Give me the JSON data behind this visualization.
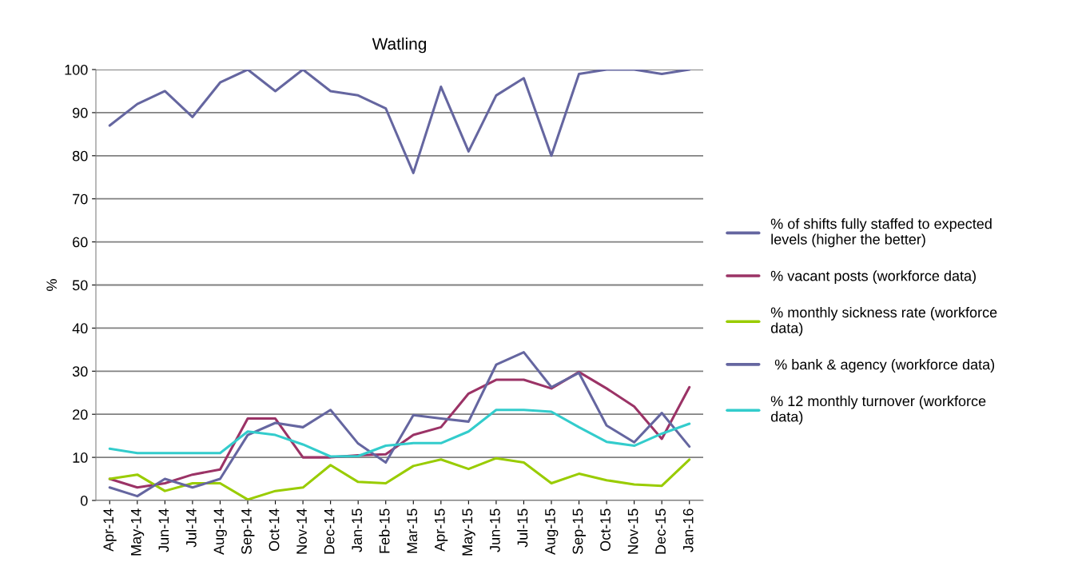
{
  "chart_data": {
    "type": "line",
    "title": "Watling",
    "ylabel": "%",
    "categories": [
      "Apr-14",
      "May-14",
      "Jun-14",
      "Jul-14",
      "Aug-14",
      "Sep-14",
      "Oct-14",
      "Nov-14",
      "Dec-14",
      "Jan-15",
      "Feb-15",
      "Mar-15",
      "Apr-15",
      "May-15",
      "Jun-15",
      "Jul-15",
      "Aug-15",
      "Sep-15",
      "Oct-15",
      "Nov-15",
      "Dec-15",
      "Jan-16"
    ],
    "series": [
      {
        "name": "% of shifts fully staffed to expected\nlevels (higher the better)",
        "color": "#6566a0",
        "values": [
          87,
          92,
          95,
          89,
          97,
          100,
          95,
          100,
          95,
          94,
          91,
          76,
          96,
          81,
          94,
          98,
          80,
          99,
          100,
          100,
          99,
          100
        ]
      },
      {
        "name": "% vacant posts (workforce data)",
        "color": "#9b3366",
        "values": [
          5,
          3,
          4,
          6,
          7.2,
          19,
          19,
          10,
          10,
          10.5,
          10.7,
          15.2,
          17,
          24.8,
          28,
          28,
          26,
          29.8,
          26,
          21.8,
          14.3,
          26.3
        ]
      },
      {
        "name": "% monthly sickness rate (workforce\ndata)",
        "color": "#99cc00",
        "values": [
          5,
          6,
          2.2,
          4,
          4,
          0.2,
          2.2,
          3,
          8.2,
          4.3,
          4,
          8,
          9.5,
          7.3,
          9.8,
          8.8,
          4,
          6.2,
          4.7,
          3.7,
          3.4,
          9.5
        ]
      },
      {
        "name": " % bank & agency (workforce data)",
        "color": "#6566a0",
        "values": [
          3,
          1,
          5,
          3,
          5,
          15.2,
          18,
          17,
          21,
          13.2,
          8.8,
          19.8,
          19,
          18.3,
          31.5,
          34.4,
          26.3,
          29.6,
          17.4,
          13.5,
          20.3,
          12.5
        ]
      },
      {
        "name": "% 12 monthly turnover (workforce\ndata)",
        "color": "#33cccc",
        "values": [
          12,
          11,
          11,
          11,
          11,
          16,
          15.2,
          13,
          10.2,
          10.3,
          12.7,
          13.3,
          13.3,
          16,
          21,
          21,
          20.6,
          17,
          13.6,
          12.7,
          15.5,
          17.8
        ]
      }
    ],
    "ylim": [
      0,
      100
    ],
    "yticks": [
      0,
      10,
      20,
      30,
      40,
      50,
      60,
      70,
      80,
      90,
      100
    ],
    "grid": "y",
    "legend": "right",
    "marker": "none",
    "line_style": "solid"
  }
}
